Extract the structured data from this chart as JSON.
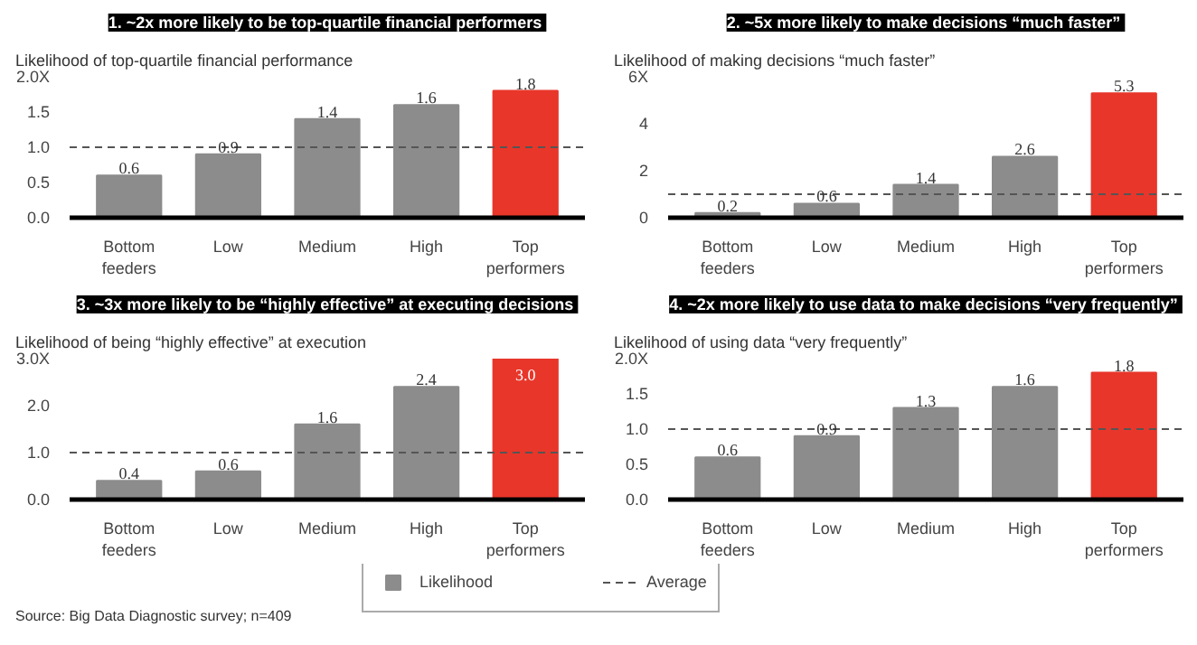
{
  "chart_data": [
    {
      "type": "bar",
      "title": "1.  ~2x more likely to be top-quartile financial performers",
      "subtitle": "Likelihood of top-quartile financial performance",
      "categories": [
        "Bottom feeders",
        "Low",
        "Medium",
        "High",
        "Top performers"
      ],
      "series": [
        {
          "color": "#8c8c8c",
          "colors": [
            "#8c8c8c",
            "#8c8c8c",
            "#8c8c8c",
            "#8c8c8c",
            "#e8362a"
          ],
          "values": [
            0.6,
            0.9,
            1.4,
            1.6,
            1.8
          ]
        }
      ],
      "ylim": [
        0,
        2
      ],
      "yticks": [
        {
          "value": 0,
          "label": "0.0"
        },
        0.5,
        {
          "value": 1,
          "label": "1.0"
        },
        1.5,
        {
          "value": 2,
          "label": "2.0X"
        }
      ],
      "data_labels": true,
      "grid": false,
      "ref_lines": [
        {
          "axis": "y",
          "value": 1,
          "line_style": "dashed",
          "color": "#555555"
        }
      ]
    },
    {
      "type": "bar",
      "title": "2.  ~5x more likely to make decisions “much faster”",
      "subtitle": "Likelihood of making decisions “much faster”",
      "categories": [
        "Bottom feeders",
        "Low",
        "Medium",
        "High",
        "Top performers"
      ],
      "series": [
        {
          "color": "#8c8c8c",
          "colors": [
            "#8c8c8c",
            "#8c8c8c",
            "#8c8c8c",
            "#8c8c8c",
            "#e8362a"
          ],
          "values": [
            0.2,
            0.6,
            1.4,
            2.6,
            5.3
          ]
        }
      ],
      "ylim": [
        0,
        6
      ],
      "yticks": [
        0,
        2,
        4,
        {
          "value": 6,
          "label": "6X"
        }
      ],
      "data_labels": true,
      "grid": false,
      "ref_lines": [
        {
          "axis": "y",
          "value": 1,
          "line_style": "dashed",
          "color": "#555555"
        }
      ]
    },
    {
      "type": "bar",
      "title": "3.  ~3x more likely to be “highly effective” at executing decisions",
      "subtitle": "Likelihood of being “highly effective” at execution",
      "categories": [
        "Bottom feeders",
        "Low",
        "Medium",
        "High",
        "Top performers"
      ],
      "series": [
        {
          "color": "#8c8c8c",
          "colors": [
            "#8c8c8c",
            "#8c8c8c",
            "#8c8c8c",
            "#8c8c8c",
            "#e8362a"
          ],
          "values": [
            0.4,
            0.6,
            1.6,
            2.4,
            3.0
          ],
          "value_labels": [
            "0.4",
            "0.6",
            "1.6",
            "2.4",
            "3.0"
          ]
        }
      ],
      "ylim": [
        0,
        3
      ],
      "yticks": [
        {
          "value": 0,
          "label": "0.0"
        },
        {
          "value": 1,
          "label": "1.0"
        },
        {
          "value": 2,
          "label": "2.0"
        },
        {
          "value": 3,
          "label": "3.0X"
        }
      ],
      "grid": false,
      "ref_lines": [
        {
          "axis": "y",
          "value": 1,
          "line_style": "dashed",
          "color": "#555555"
        }
      ],
      "annotations": [
        "Source: Big Data Diagnostic survey; n=409"
      ]
    },
    {
      "type": "bar",
      "title": "4.  ~2x more likely to use data to make decisions “very frequently”",
      "subtitle": "Likelihood of using data “very frequently”",
      "categories": [
        "Bottom feeders",
        "Low",
        "Medium",
        "High",
        "Top performers"
      ],
      "series": [
        {
          "name": "Likelihood",
          "color": "#8c8c8c",
          "colors": [
            "#8c8c8c",
            "#8c8c8c",
            "#8c8c8c",
            "#8c8c8c",
            "#e8362a"
          ],
          "values": [
            0.6,
            0.9,
            1.3,
            1.6,
            1.8
          ]
        }
      ],
      "ylim": [
        0,
        2
      ],
      "yticks": [
        {
          "value": 0,
          "label": "0.0"
        },
        0.5,
        {
          "value": 1,
          "label": "1.0"
        },
        1.5,
        {
          "value": 2,
          "label": "2.0X"
        }
      ],
      "data_labels": true,
      "grid": false,
      "legend": "bottom",
      "ref_lines": [
        {
          "axis": "y",
          "value": 1,
          "label": "Average",
          "line_style": "dashed",
          "color": "#555555"
        }
      ]
    }
  ]
}
